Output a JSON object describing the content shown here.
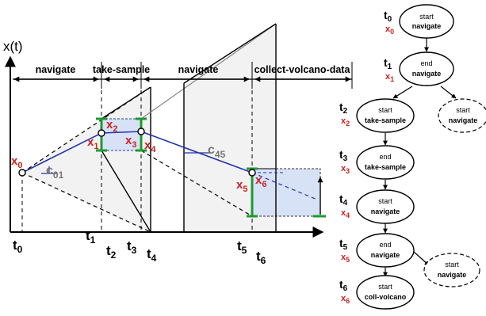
{
  "plot": {
    "y_axis_label": "x(t)",
    "actions": [
      "navigate",
      "take-sample",
      "navigate",
      "collect-volcano-data"
    ],
    "times": [
      {
        "t": "t",
        "i": "0"
      },
      {
        "t": "t",
        "i": "1"
      },
      {
        "t": "t",
        "i": "2"
      },
      {
        "t": "t",
        "i": "3"
      },
      {
        "t": "t",
        "i": "4"
      },
      {
        "t": "t",
        "i": "5"
      },
      {
        "t": "t",
        "i": "6"
      }
    ],
    "states": [
      {
        "x": "x",
        "i": "0"
      },
      {
        "x": "x",
        "i": "1"
      },
      {
        "x": "x",
        "i": "2"
      },
      {
        "x": "x",
        "i": "3"
      },
      {
        "x": "x",
        "i": "4"
      },
      {
        "x": "x",
        "i": "5"
      },
      {
        "x": "x",
        "i": "6"
      }
    ],
    "slopes": [
      {
        "c": "c",
        "i": "01"
      },
      {
        "c": "c",
        "i": "45"
      }
    ]
  },
  "graph": {
    "nodes": [
      {
        "t": "t",
        "ti": "0",
        "x": "x",
        "xi": "0",
        "event": "start",
        "action": "navigate"
      },
      {
        "t": "t",
        "ti": "1",
        "x": "x",
        "xi": "1",
        "event": "end",
        "action": "navigate"
      },
      {
        "t": "t",
        "ti": "2",
        "x": "x",
        "xi": "2",
        "event": "start",
        "action": "take-sample"
      },
      {
        "t": "t",
        "ti": "3",
        "x": "x",
        "xi": "3",
        "event": "end",
        "action": "take-sample"
      },
      {
        "t": "t",
        "ti": "4",
        "x": "x",
        "xi": "4",
        "event": "start",
        "action": "navigate"
      },
      {
        "t": "t",
        "ti": "5",
        "x": "x",
        "xi": "5",
        "event": "end",
        "action": "navigate"
      },
      {
        "t": "t",
        "ti": "6",
        "x": "x",
        "xi": "6",
        "event": "start",
        "action": "coll-volcano"
      }
    ],
    "alternatives": [
      {
        "event": "start",
        "action": "navigate"
      },
      {
        "event": "start",
        "action": "navigate"
      }
    ]
  }
}
